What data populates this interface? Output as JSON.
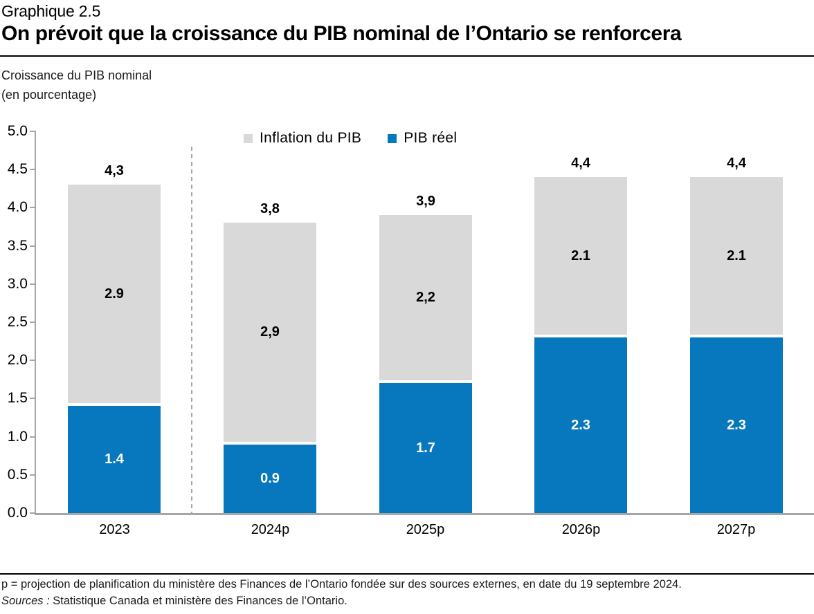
{
  "header": {
    "figure_label": "Graphique 2.5",
    "title": "On prévoit que la croissance du PIB nominal de l’Ontario se renforcera",
    "y_axis_title_line1": "Croissance du PIB nominal",
    "y_axis_title_line2": "(en pourcentage)"
  },
  "legend": {
    "items": [
      {
        "label": "Inflation du PIB",
        "color": "#d9d9d9"
      },
      {
        "label": "PIB réel",
        "color": "#0878be"
      }
    ]
  },
  "chart_data": {
    "type": "bar",
    "stacked": true,
    "title": "On prévoit que la croissance du PIB nominal de l’Ontario se renforcera",
    "ylabel": "Croissance du PIB nominal (en pourcentage)",
    "categories": [
      "2023",
      "2024p",
      "2025p",
      "2026p",
      "2027p"
    ],
    "series": [
      {
        "name": "PIB réel",
        "color": "#0878be",
        "label_color": "#ffffff",
        "values": [
          1.4,
          0.9,
          1.7,
          2.3,
          2.3
        ],
        "labels": [
          "1.4",
          "0.9",
          "1.7",
          "2.3",
          "2.3"
        ]
      },
      {
        "name": "Inflation du PIB",
        "color": "#d9d9d9",
        "label_color": "#000000",
        "values": [
          2.9,
          2.9,
          2.2,
          2.1,
          2.1
        ],
        "labels": [
          "2.9",
          "2,9",
          "2,2",
          "2.1",
          "2.1"
        ]
      }
    ],
    "totals": [
      4.3,
      3.8,
      3.9,
      4.4,
      4.4
    ],
    "total_labels": [
      "4,3",
      "3,8",
      "3,9",
      "4,4",
      "4,4"
    ],
    "ylim": [
      0,
      5
    ],
    "ytick_step": 0.5,
    "ytick_labels": [
      "0.0",
      "0.5",
      "1.0",
      "1.5",
      "2.0",
      "2.5",
      "3.0",
      "3.5",
      "4.0",
      "4.5",
      "5.0"
    ],
    "grid": false,
    "legend_position": "top",
    "projection_separator_after": "2023",
    "axis_color": "#a6a6a6"
  },
  "footer": {
    "note": "p = projection de planification du ministère des Finances de l’Ontario fondée sur des sources externes, en date du 19 septembre 2024.",
    "sources_label": "Sources :",
    "sources_text": " Statistique Canada et ministère des Finances de l’Ontario."
  }
}
